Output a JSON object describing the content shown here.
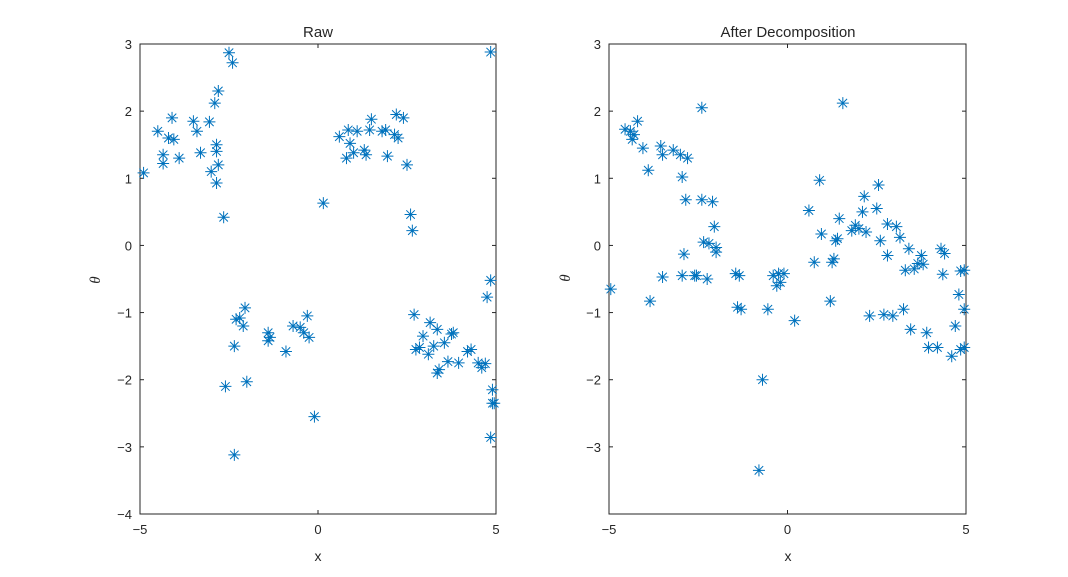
{
  "colors": {
    "marker": "#0072BD",
    "axis": "#262626",
    "background": "#ffffff"
  },
  "chart_data": [
    {
      "type": "scatter",
      "title": "Raw",
      "xlabel": "x",
      "ylabel": "θ",
      "xlim": [
        -5,
        5
      ],
      "ylim": [
        -4,
        3
      ],
      "xticks": [
        "-5",
        "0",
        "5"
      ],
      "yticks": [
        "-4",
        "-3",
        "-2",
        "-1",
        "0",
        "1",
        "2",
        "3"
      ],
      "marker": "asterisk",
      "points": [
        [
          -4.9,
          1.08
        ],
        [
          -4.5,
          1.7
        ],
        [
          -4.35,
          1.35
        ],
        [
          -4.35,
          1.22
        ],
        [
          -4.2,
          1.6
        ],
        [
          -4.1,
          1.9
        ],
        [
          -4.05,
          1.58
        ],
        [
          -3.9,
          1.3
        ],
        [
          -3.5,
          1.85
        ],
        [
          -3.4,
          1.7
        ],
        [
          -3.3,
          1.38
        ],
        [
          -3.05,
          1.84
        ],
        [
          -3.0,
          1.1
        ],
        [
          -2.9,
          2.12
        ],
        [
          -2.85,
          1.5
        ],
        [
          -2.85,
          1.4
        ],
        [
          -2.8,
          2.3
        ],
        [
          -2.8,
          1.2
        ],
        [
          -2.85,
          0.93
        ],
        [
          -2.65,
          0.42
        ],
        [
          -2.5,
          2.87
        ],
        [
          -2.4,
          2.72
        ],
        [
          -2.6,
          -2.1
        ],
        [
          -2.35,
          -1.5
        ],
        [
          -2.35,
          -3.12
        ],
        [
          -2.3,
          -1.1
        ],
        [
          -2.2,
          -1.08
        ],
        [
          -2.1,
          -1.2
        ],
        [
          -2.05,
          -0.93
        ],
        [
          -2.0,
          -2.03
        ],
        [
          -1.4,
          -1.3
        ],
        [
          -1.4,
          -1.42
        ],
        [
          -1.35,
          -1.37
        ],
        [
          -0.9,
          -1.58
        ],
        [
          -0.7,
          -1.2
        ],
        [
          -0.5,
          -1.22
        ],
        [
          -0.4,
          -1.3
        ],
        [
          -0.3,
          -1.05
        ],
        [
          -0.25,
          -1.37
        ],
        [
          -0.1,
          -2.55
        ],
        [
          0.15,
          0.63
        ],
        [
          0.6,
          1.62
        ],
        [
          0.8,
          1.3
        ],
        [
          0.85,
          1.72
        ],
        [
          0.9,
          1.52
        ],
        [
          1.0,
          1.38
        ],
        [
          1.1,
          1.7
        ],
        [
          1.3,
          1.42
        ],
        [
          1.35,
          1.35
        ],
        [
          1.45,
          1.72
        ],
        [
          1.5,
          1.88
        ],
        [
          1.8,
          1.7
        ],
        [
          1.9,
          1.72
        ],
        [
          1.95,
          1.33
        ],
        [
          2.15,
          1.65
        ],
        [
          2.2,
          1.95
        ],
        [
          2.25,
          1.6
        ],
        [
          2.4,
          1.9
        ],
        [
          2.5,
          1.2
        ],
        [
          2.6,
          0.46
        ],
        [
          2.65,
          0.22
        ],
        [
          2.7,
          -1.03
        ],
        [
          2.75,
          -1.55
        ],
        [
          2.85,
          -1.52
        ],
        [
          2.95,
          -1.35
        ],
        [
          3.1,
          -1.62
        ],
        [
          3.15,
          -1.15
        ],
        [
          3.25,
          -1.5
        ],
        [
          3.35,
          -1.25
        ],
        [
          3.35,
          -1.9
        ],
        [
          3.4,
          -1.85
        ],
        [
          3.55,
          -1.45
        ],
        [
          3.65,
          -1.73
        ],
        [
          3.75,
          -1.32
        ],
        [
          3.8,
          -1.3
        ],
        [
          3.95,
          -1.75
        ],
        [
          4.2,
          -1.58
        ],
        [
          4.3,
          -1.55
        ],
        [
          4.5,
          -1.75
        ],
        [
          4.6,
          -1.82
        ],
        [
          4.7,
          -1.76
        ],
        [
          4.75,
          -0.77
        ],
        [
          4.85,
          -0.52
        ],
        [
          4.85,
          2.88
        ],
        [
          4.85,
          -2.86
        ],
        [
          4.9,
          -2.15
        ],
        [
          4.9,
          -2.35
        ],
        [
          4.95,
          -2.35
        ]
      ]
    },
    {
      "type": "scatter",
      "title": "After Decomposition",
      "xlabel": "x",
      "ylabel": "θ",
      "xlim": [
        -5,
        5
      ],
      "ylim": [
        -4,
        3
      ],
      "xticks": [
        "-5",
        "0",
        "5"
      ],
      "yticks": [
        "-3",
        "-2",
        "-1",
        "0",
        "1",
        "2",
        "3"
      ],
      "marker": "asterisk",
      "points": [
        [
          -4.95,
          -0.65
        ],
        [
          -4.55,
          1.73
        ],
        [
          -4.4,
          1.7
        ],
        [
          -4.35,
          1.58
        ],
        [
          -4.3,
          1.65
        ],
        [
          -4.2,
          1.85
        ],
        [
          -4.05,
          1.45
        ],
        [
          -3.9,
          1.12
        ],
        [
          -3.85,
          -0.83
        ],
        [
          -3.55,
          1.48
        ],
        [
          -3.5,
          1.35
        ],
        [
          -3.5,
          -0.47
        ],
        [
          -3.2,
          1.42
        ],
        [
          -3.0,
          1.35
        ],
        [
          -2.95,
          1.02
        ],
        [
          -2.95,
          -0.45
        ],
        [
          -2.9,
          -0.13
        ],
        [
          -2.85,
          0.68
        ],
        [
          -2.8,
          1.3
        ],
        [
          -2.6,
          -0.45
        ],
        [
          -2.55,
          -0.45
        ],
        [
          -2.4,
          2.05
        ],
        [
          -2.4,
          0.68
        ],
        [
          -2.35,
          0.05
        ],
        [
          -2.25,
          -0.5
        ],
        [
          -2.2,
          0.03
        ],
        [
          -2.1,
          0.65
        ],
        [
          -2.05,
          0.28
        ],
        [
          -2.0,
          -0.03
        ],
        [
          -2.0,
          -0.1
        ],
        [
          -1.45,
          -0.42
        ],
        [
          -1.4,
          -0.92
        ],
        [
          -1.35,
          -0.45
        ],
        [
          -1.3,
          -0.95
        ],
        [
          -0.8,
          -3.35
        ],
        [
          -0.7,
          -2.0
        ],
        [
          -0.55,
          -0.95
        ],
        [
          -0.4,
          -0.45
        ],
        [
          -0.3,
          -0.6
        ],
        [
          -0.25,
          -0.42
        ],
        [
          -0.2,
          -0.55
        ],
        [
          -0.1,
          -0.42
        ],
        [
          0.2,
          -1.12
        ],
        [
          0.6,
          0.52
        ],
        [
          0.75,
          -0.25
        ],
        [
          0.9,
          0.97
        ],
        [
          0.95,
          0.17
        ],
        [
          1.2,
          -0.83
        ],
        [
          1.25,
          -0.25
        ],
        [
          1.3,
          -0.2
        ],
        [
          1.35,
          0.07
        ],
        [
          1.4,
          0.1
        ],
        [
          1.45,
          0.4
        ],
        [
          1.55,
          2.12
        ],
        [
          1.8,
          0.22
        ],
        [
          1.9,
          0.3
        ],
        [
          2.0,
          0.25
        ],
        [
          2.1,
          0.5
        ],
        [
          2.15,
          0.73
        ],
        [
          2.2,
          0.2
        ],
        [
          2.3,
          -1.05
        ],
        [
          2.5,
          0.55
        ],
        [
          2.55,
          0.9
        ],
        [
          2.6,
          0.07
        ],
        [
          2.7,
          -1.03
        ],
        [
          2.8,
          0.32
        ],
        [
          2.8,
          -0.15
        ],
        [
          2.95,
          -1.05
        ],
        [
          3.05,
          0.28
        ],
        [
          3.15,
          0.12
        ],
        [
          3.25,
          -0.95
        ],
        [
          3.3,
          -0.37
        ],
        [
          3.4,
          -0.05
        ],
        [
          3.45,
          -1.25
        ],
        [
          3.55,
          -0.35
        ],
        [
          3.65,
          -0.27
        ],
        [
          3.75,
          -0.15
        ],
        [
          3.8,
          -0.28
        ],
        [
          3.9,
          -1.3
        ],
        [
          3.95,
          -1.52
        ],
        [
          4.2,
          -1.52
        ],
        [
          4.3,
          -0.05
        ],
        [
          4.35,
          -0.43
        ],
        [
          4.4,
          -0.12
        ],
        [
          4.6,
          -1.65
        ],
        [
          4.7,
          -1.2
        ],
        [
          4.8,
          -0.73
        ],
        [
          4.85,
          -0.38
        ],
        [
          4.85,
          -1.55
        ],
        [
          4.95,
          -0.37
        ],
        [
          4.95,
          -0.95
        ],
        [
          4.95,
          -1.52
        ]
      ]
    }
  ]
}
